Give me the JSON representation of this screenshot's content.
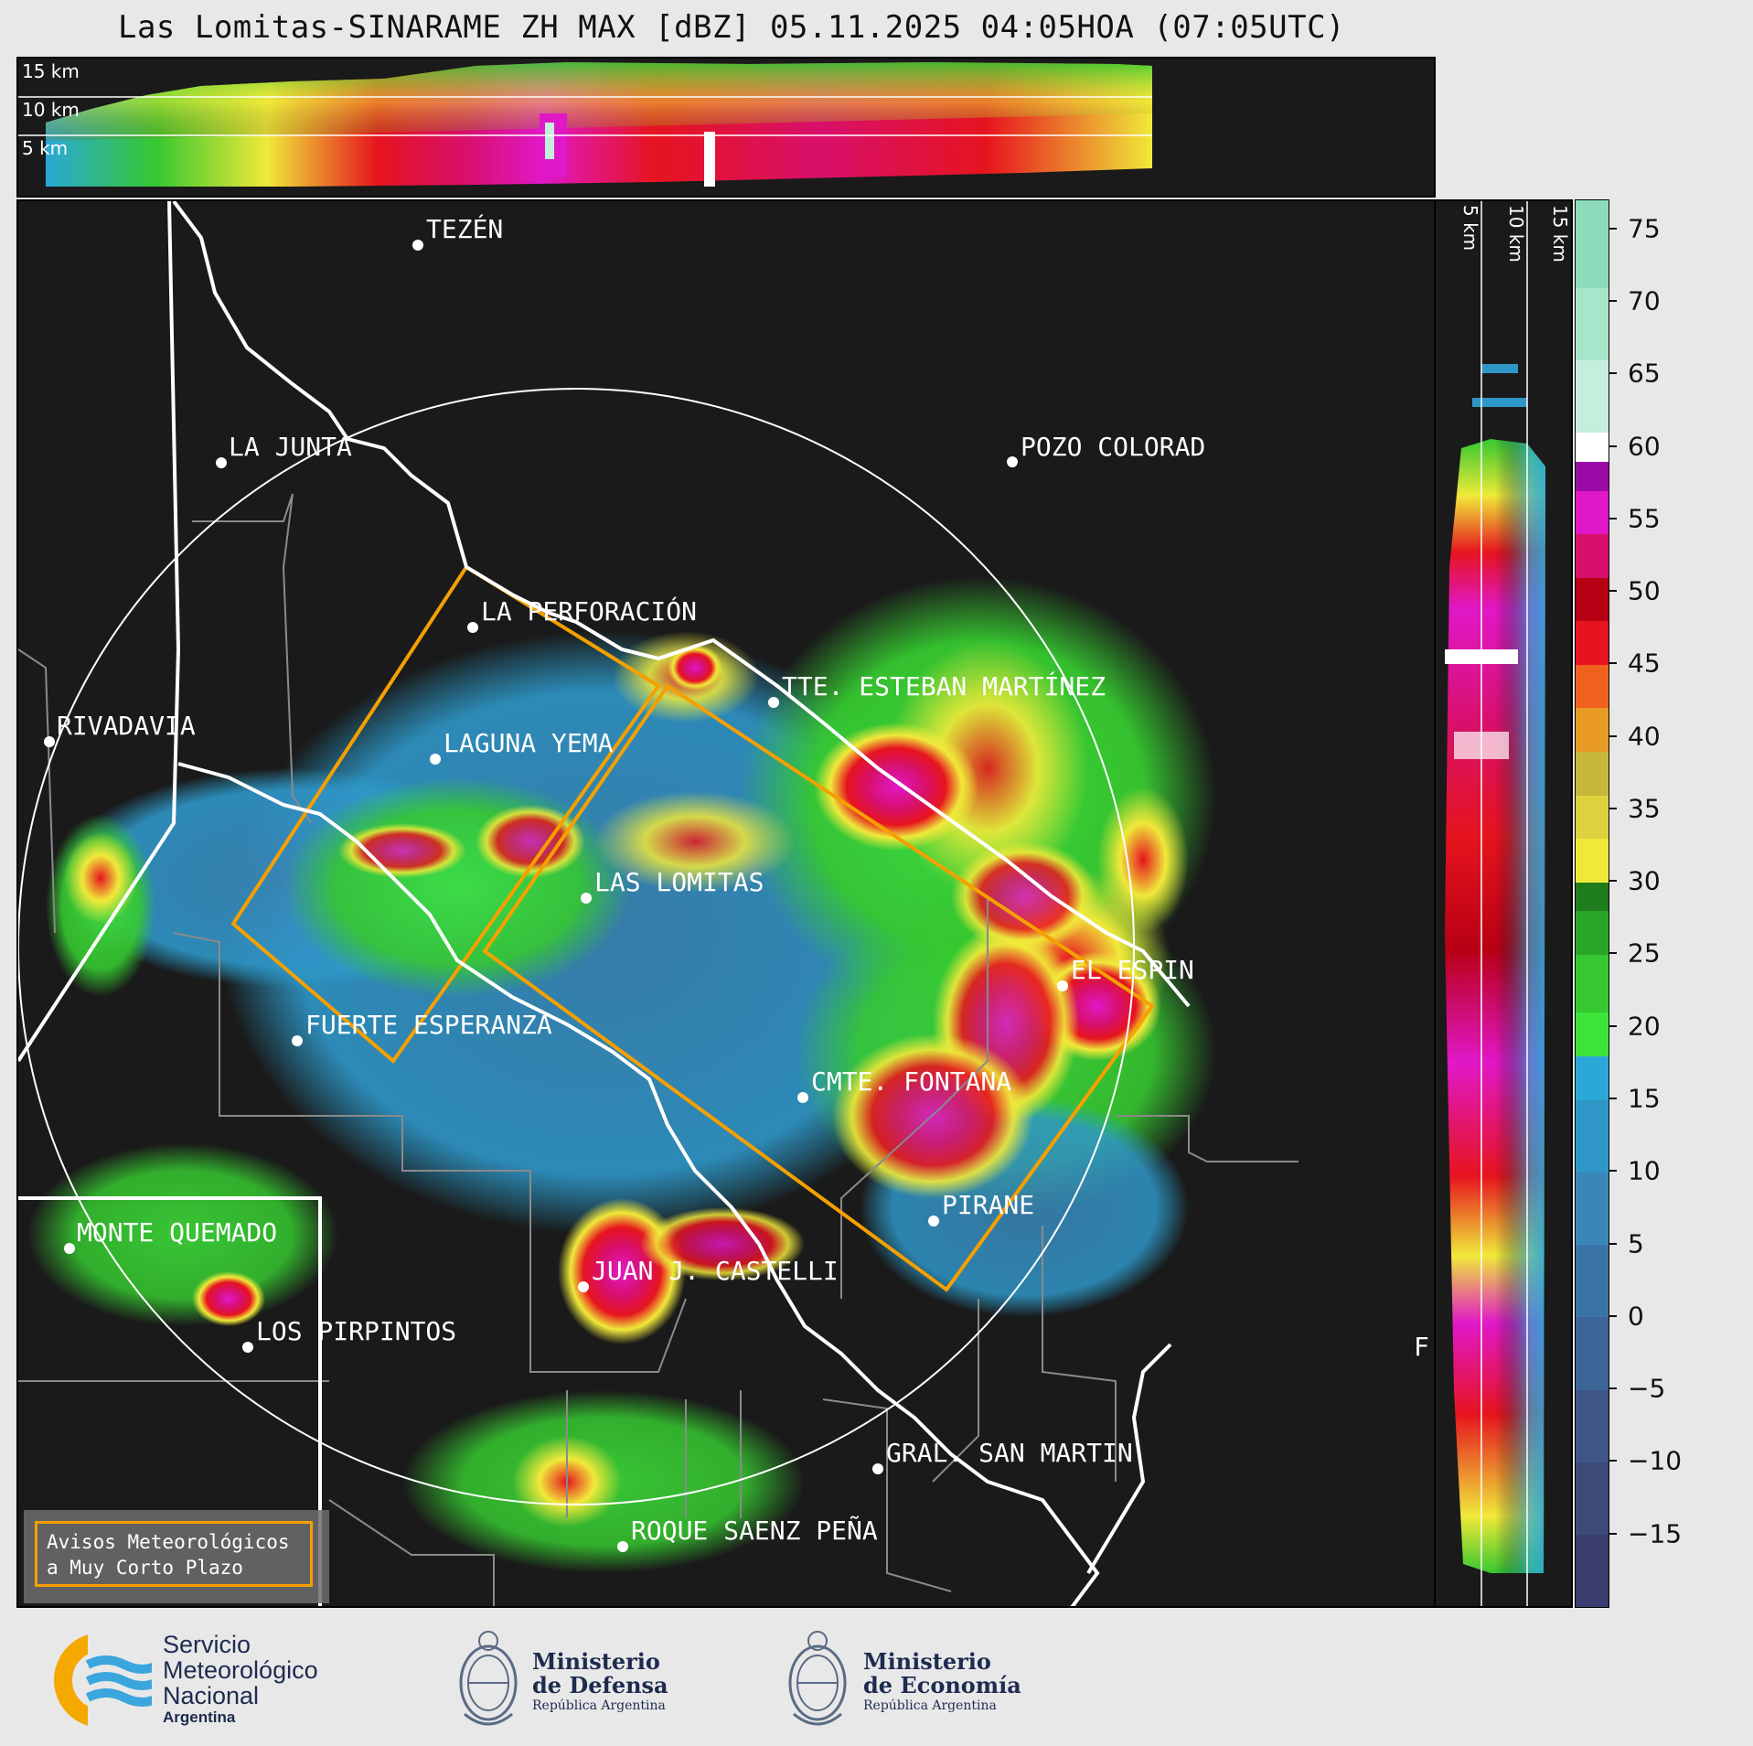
{
  "title": "Las Lomitas-SINARAME ZH MAX [dBZ] 05.11.2025 04:05HOA (07:05UTC)",
  "top_panel": {
    "height_labels": [
      "15 km",
      "10 km",
      "5 km"
    ]
  },
  "side_panel": {
    "height_labels": [
      "5 km",
      "10 km",
      "15 km"
    ]
  },
  "colorbar": {
    "ticks": [
      "75",
      "70",
      "65",
      "60",
      "55",
      "50",
      "45",
      "40",
      "35",
      "30",
      "25",
      "20",
      "15",
      "10",
      "5",
      "0",
      "−5",
      "−10",
      "−15"
    ],
    "range_min": -20,
    "range_max": 77,
    "colors": [
      {
        "from": -20,
        "to": -15,
        "color": "#3a3d6e"
      },
      {
        "from": -15,
        "to": -10,
        "color": "#3d4a7a"
      },
      {
        "from": -10,
        "to": -5,
        "color": "#3f5686"
      },
      {
        "from": -5,
        "to": 0,
        "color": "#3c6496"
      },
      {
        "from": 0,
        "to": 5,
        "color": "#3a74a6"
      },
      {
        "from": 5,
        "to": 10,
        "color": "#3a86b8"
      },
      {
        "from": 10,
        "to": 15,
        "color": "#2f96c8"
      },
      {
        "from": 15,
        "to": 18,
        "color": "#2aa8d8"
      },
      {
        "from": 18,
        "to": 21,
        "color": "#3ee33a"
      },
      {
        "from": 21,
        "to": 25,
        "color": "#36c830"
      },
      {
        "from": 25,
        "to": 28,
        "color": "#2aa626"
      },
      {
        "from": 28,
        "to": 30,
        "color": "#1f7d1d"
      },
      {
        "from": 30,
        "to": 33,
        "color": "#f0e93a"
      },
      {
        "from": 33,
        "to": 36,
        "color": "#dcd23e"
      },
      {
        "from": 36,
        "to": 39,
        "color": "#c8b83a"
      },
      {
        "from": 39,
        "to": 42,
        "color": "#e89a22"
      },
      {
        "from": 42,
        "to": 45,
        "color": "#f0601e"
      },
      {
        "from": 45,
        "to": 48,
        "color": "#e6141e"
      },
      {
        "from": 48,
        "to": 51,
        "color": "#b80014"
      },
      {
        "from": 51,
        "to": 54,
        "color": "#d8106c"
      },
      {
        "from": 54,
        "to": 57,
        "color": "#e018c8"
      },
      {
        "from": 57,
        "to": 59,
        "color": "#9a0aa6"
      },
      {
        "from": 59,
        "to": 61,
        "color": "#ffffff"
      },
      {
        "from": 61,
        "to": 66,
        "color": "#c6eedd"
      },
      {
        "from": 66,
        "to": 71,
        "color": "#a8e6cc"
      },
      {
        "from": 71,
        "to": 77,
        "color": "#8cdcbc"
      }
    ]
  },
  "cities": [
    {
      "name": "TEZÉN"
    },
    {
      "name": "LA JUNTA"
    },
    {
      "name": "POZO COLORAD"
    },
    {
      "name": "LA PERFORACIÓN"
    },
    {
      "name": "TTE. ESTEBAN MARTÍNEZ"
    },
    {
      "name": "RIVADAVIA"
    },
    {
      "name": "LAGUNA YEMA"
    },
    {
      "name": "LAS LOMITAS"
    },
    {
      "name": "EL ESPIN"
    },
    {
      "name": "FUERTE ESPERANZA"
    },
    {
      "name": "CMTE. FONTANA"
    },
    {
      "name": "PIRANE"
    },
    {
      "name": "MONTE QUEMADO"
    },
    {
      "name": "JUAN J. CASTELLI"
    },
    {
      "name": "LOS PIRPINTOS"
    },
    {
      "name": "GRAL. SAN MARTIN"
    },
    {
      "name": "ROQUE SAENZ PEÑA"
    },
    {
      "name": "F"
    }
  ],
  "warning_box": {
    "line1": "Avisos Meteorológicos",
    "line2": "a Muy Corto Plazo"
  },
  "footer": {
    "smn": {
      "line1": "Servicio",
      "line2": "Meteorológico",
      "line3": "Nacional",
      "line4": "Argentina"
    },
    "defensa": {
      "line1": "Ministerio",
      "line2": "de Defensa",
      "line3": "República Argentina"
    },
    "economia": {
      "line1": "Ministerio",
      "line2": "de Economía",
      "line3": "República Argentina"
    }
  }
}
